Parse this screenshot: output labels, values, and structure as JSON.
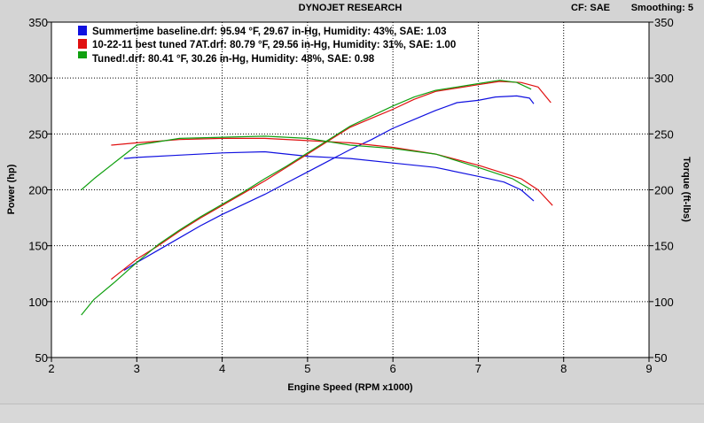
{
  "header": {
    "title": "DYNOJET RESEARCH",
    "cf_label": "CF: SAE",
    "smoothing_label": "Smoothing: 5"
  },
  "chart_data": {
    "type": "line",
    "title": "DYNOJET RESEARCH",
    "xlabel": "Engine Speed (RPM x1000)",
    "ylabel": "Power (hp)",
    "y2label": "Torque (ft-lbs)",
    "xlim": [
      2,
      9
    ],
    "ylim": [
      50,
      350
    ],
    "y2lim": [
      50,
      350
    ],
    "xticks": [
      2,
      3,
      4,
      5,
      6,
      7,
      8,
      9
    ],
    "yticks": [
      50,
      100,
      150,
      200,
      250,
      300,
      350
    ],
    "y2ticks": [
      50,
      100,
      150,
      200,
      250,
      300,
      350
    ],
    "grid": true,
    "legend_position": "top-left",
    "series": [
      {
        "name": "Summertime baseline.drf: 95.94 °F, 29.67 in-Hg, Humidity: 43%, SAE: 1.03",
        "color": "#1010e0",
        "power": {
          "x": [
            2.85,
            3.0,
            3.25,
            3.5,
            3.75,
            4.0,
            4.25,
            4.5,
            4.75,
            5.0,
            5.25,
            5.5,
            5.75,
            6.0,
            6.25,
            6.5,
            6.75,
            7.0,
            7.2,
            7.45,
            7.6,
            7.65
          ],
          "y": [
            128,
            135,
            146,
            157,
            168,
            178,
            187,
            196,
            206,
            216,
            226,
            236,
            245,
            255,
            263,
            271,
            278,
            280,
            283,
            284,
            282,
            277
          ]
        },
        "torque": {
          "x": [
            2.85,
            3.0,
            3.5,
            4.0,
            4.5,
            5.0,
            5.5,
            6.0,
            6.5,
            7.0,
            7.3,
            7.5,
            7.65
          ],
          "y": [
            228,
            229,
            231,
            233,
            234,
            230,
            228,
            224,
            220,
            212,
            207,
            200,
            190
          ]
        }
      },
      {
        "name": "10-22-11 best tuned 7AT.drf: 80.79 °F, 29.56 in-Hg, Humidity: 31%, SAE: 1.00",
        "color": "#e01010",
        "power": {
          "x": [
            2.7,
            3.0,
            3.25,
            3.5,
            3.75,
            4.0,
            4.25,
            4.5,
            4.75,
            5.0,
            5.25,
            5.5,
            5.75,
            6.0,
            6.25,
            6.5,
            6.75,
            7.0,
            7.25,
            7.5,
            7.7,
            7.85
          ],
          "y": [
            120,
            138,
            150,
            163,
            175,
            186,
            197,
            208,
            220,
            232,
            244,
            256,
            264,
            272,
            281,
            288,
            291,
            294,
            297,
            296,
            292,
            278
          ]
        },
        "torque": {
          "x": [
            2.7,
            3.0,
            3.5,
            4.0,
            4.5,
            5.0,
            5.5,
            6.0,
            6.5,
            7.0,
            7.5,
            7.7,
            7.87
          ],
          "y": [
            240,
            242,
            245,
            246,
            246,
            244,
            242,
            238,
            232,
            222,
            210,
            200,
            186
          ]
        }
      },
      {
        "name": "Tuned!.drf: 80.41 °F, 30.26 in-Hg, Humidity: 48%, SAE: 0.98",
        "color": "#10a010",
        "power": {
          "x": [
            2.35,
            2.5,
            2.75,
            3.0,
            3.25,
            3.5,
            3.75,
            4.0,
            4.25,
            4.5,
            4.75,
            5.0,
            5.25,
            5.5,
            5.75,
            6.0,
            6.25,
            6.5,
            6.75,
            7.0,
            7.25,
            7.45,
            7.62
          ],
          "y": [
            88,
            102,
            118,
            135,
            151,
            164,
            176,
            187,
            198,
            210,
            221,
            233,
            245,
            257,
            266,
            275,
            283,
            289,
            292,
            295,
            298,
            296,
            290
          ]
        },
        "torque": {
          "x": [
            2.35,
            2.5,
            2.75,
            3.0,
            3.5,
            4.0,
            4.5,
            5.0,
            5.5,
            6.0,
            6.5,
            7.0,
            7.4,
            7.62
          ],
          "y": [
            200,
            210,
            225,
            240,
            246,
            247,
            248,
            246,
            240,
            237,
            232,
            220,
            210,
            200
          ]
        }
      }
    ]
  }
}
